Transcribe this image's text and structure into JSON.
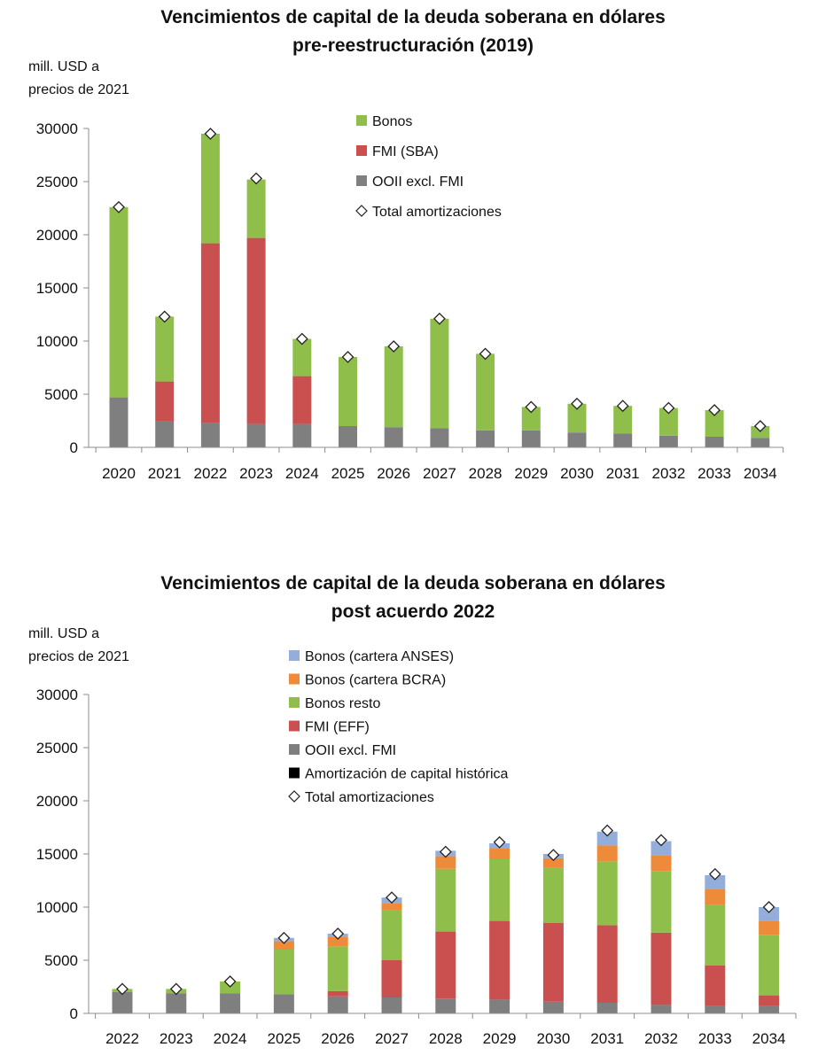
{
  "chart_data": [
    {
      "type": "bar",
      "stacked": true,
      "title": "Vencimientos de capital de la deuda soberana en dólares",
      "subtitle": "pre-reestructuración (2019)",
      "ylabel_line1": "mill. USD a",
      "ylabel_line2": "precios de 2021",
      "ylim": [
        0,
        30000
      ],
      "yticks": [
        "0",
        "5000",
        "10000",
        "15000",
        "20000",
        "25000",
        "30000"
      ],
      "categories": [
        "2020",
        "2021",
        "2022",
        "2023",
        "2024",
        "2025",
        "2026",
        "2027",
        "2028",
        "2029",
        "2030",
        "2031",
        "2032",
        "2033",
        "2034"
      ],
      "series": [
        {
          "name": "OOII excl. FMI",
          "color": "#7f7f7f",
          "values": [
            4700,
            2500,
            2300,
            2200,
            2200,
            2000,
            1900,
            1800,
            1600,
            1600,
            1400,
            1300,
            1100,
            1000,
            900
          ]
        },
        {
          "name": "FMI (SBA)",
          "color": "#c9504f",
          "values": [
            0,
            3700,
            16900,
            17500,
            4500,
            0,
            0,
            0,
            0,
            0,
            0,
            0,
            0,
            0,
            0
          ]
        },
        {
          "name": "Bonos",
          "color": "#8fbf4a",
          "values": [
            17900,
            6100,
            10300,
            5500,
            3500,
            6500,
            7600,
            10300,
            7200,
            2200,
            2700,
            2600,
            2600,
            2500,
            1100
          ]
        }
      ],
      "totals_name": "Total amortizaciones",
      "totals": [
        22600,
        12300,
        29500,
        25300,
        10200,
        8500,
        9500,
        12100,
        8800,
        3800,
        4100,
        3900,
        3700,
        3500,
        2000
      ],
      "legend_order": [
        2,
        1,
        0
      ],
      "legend": "top-center"
    },
    {
      "type": "bar",
      "stacked": true,
      "title": "Vencimientos de capital de la deuda soberana en dólares",
      "subtitle": "post acuerdo 2022",
      "ylabel_line1": "mill. USD a",
      "ylabel_line2": "precios de 2021",
      "ylim": [
        0,
        30000
      ],
      "yticks": [
        "0",
        "5000",
        "10000",
        "15000",
        "20000",
        "25000",
        "30000"
      ],
      "categories": [
        "2022",
        "2023",
        "2024",
        "2025",
        "2026",
        "2027",
        "2028",
        "2029",
        "2030",
        "2031",
        "2032",
        "2033",
        "2034"
      ],
      "series": [
        {
          "name": "OOII excl. FMI",
          "color": "#7f7f7f",
          "values": [
            2000,
            1900,
            1900,
            1800,
            1600,
            1500,
            1400,
            1300,
            1100,
            1000,
            800,
            700,
            700
          ]
        },
        {
          "name": "FMI (EFF)",
          "color": "#c9504f",
          "values": [
            0,
            0,
            0,
            0,
            500,
            3500,
            6300,
            7400,
            7400,
            7300,
            6800,
            3800,
            1000
          ]
        },
        {
          "name": "Bonos resto",
          "color": "#8fbf4a",
          "values": [
            300,
            400,
            1100,
            4200,
            4200,
            4700,
            5900,
            5800,
            5200,
            6000,
            5800,
            5700,
            5700
          ]
        },
        {
          "name": "Bonos (cartera BCRA)",
          "color": "#ed8b3a",
          "values": [
            0,
            0,
            0,
            800,
            900,
            700,
            1200,
            1000,
            900,
            1500,
            1500,
            1500,
            1300
          ]
        },
        {
          "name": "Bonos (cartera ANSES)",
          "color": "#93aedb",
          "values": [
            0,
            0,
            0,
            300,
            300,
            500,
            500,
            500,
            400,
            1300,
            1300,
            1300,
            1300
          ]
        },
        {
          "name": "Amortización de capital histórica",
          "color": "#000000",
          "values": [
            0,
            0,
            0,
            0,
            0,
            0,
            0,
            0,
            0,
            0,
            0,
            0,
            0
          ]
        }
      ],
      "totals_name": "Total amortizaciones",
      "totals": [
        2300,
        2300,
        3000,
        7100,
        7500,
        10900,
        15200,
        16100,
        14900,
        17200,
        16300,
        13100,
        10000
      ],
      "legend_order": [
        4,
        3,
        2,
        1,
        0,
        5
      ],
      "legend": "top-center"
    }
  ]
}
